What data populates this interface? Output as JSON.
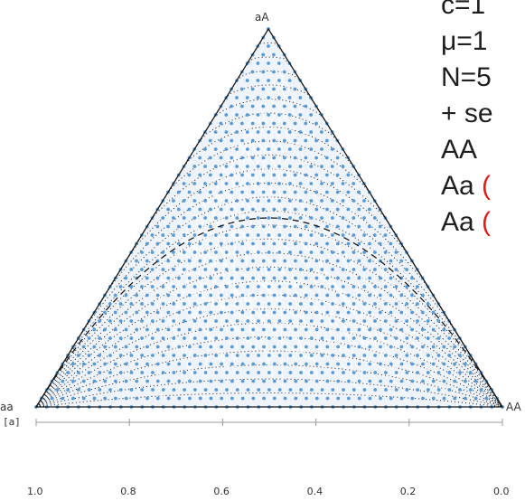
{
  "vertices": {
    "top": "aA",
    "left": "aa",
    "right": "AA"
  },
  "axis": {
    "title": "[a]",
    "ticks": [
      "1.0",
      "0.8",
      "0.6",
      "0.4",
      "0.2",
      "0.0"
    ]
  },
  "annotations": [
    {
      "text": "c=1",
      "highlight": ""
    },
    {
      "text": "μ=1",
      "highlight": ""
    },
    {
      "text": "N=5",
      "highlight": ""
    },
    {
      "text": "+ se",
      "highlight": ""
    },
    {
      "text": "AA",
      "highlight": ""
    },
    {
      "text": "Aa ",
      "highlight": "("
    },
    {
      "text": "Aa ",
      "highlight": "("
    }
  ],
  "colors": {
    "dots": "#5b9bd5",
    "lines": "#ffffff",
    "outline": "#1a1a1a",
    "background": "#ffffff"
  }
}
